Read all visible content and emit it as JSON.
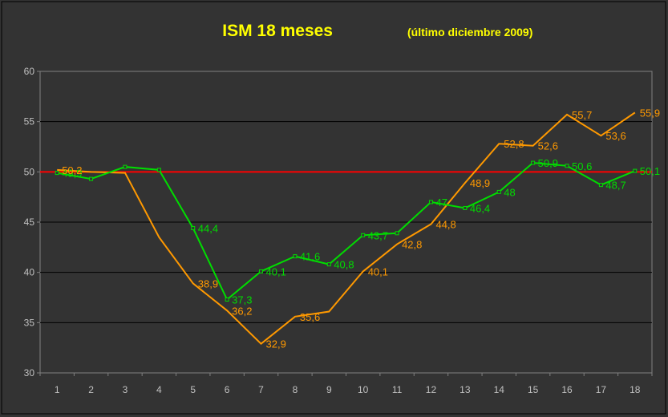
{
  "chart_data": {
    "type": "line",
    "title": "ISM 18 meses",
    "subtitle": "(último diciembre 2009)",
    "categories": [
      "1",
      "2",
      "3",
      "4",
      "5",
      "6",
      "7",
      "8",
      "9",
      "10",
      "11",
      "12",
      "13",
      "14",
      "15",
      "16",
      "17",
      "18"
    ],
    "y_ticks": [
      "30",
      "35",
      "40",
      "45",
      "50",
      "55",
      "60"
    ],
    "ylim": [
      30,
      60
    ],
    "grid": true,
    "reference_line": {
      "value": 50,
      "color": "#ff0000"
    },
    "series": [
      {
        "color": "#00dd00",
        "values": [
          49.9,
          49.3,
          50.5,
          50.2,
          44.4,
          37.3,
          40.1,
          41.6,
          40.8,
          43.7,
          43.9,
          47,
          46.4,
          48,
          50.9,
          50.6,
          48.7,
          50.1
        ],
        "labels": [
          "49,9",
          "",
          "",
          "",
          "44,4",
          "37,3",
          "40,1",
          "41,6",
          "40,8",
          "43,7",
          "",
          "47",
          "46,4",
          "48",
          "50,9",
          "50,6",
          "48,7",
          "50,1"
        ]
      },
      {
        "color": "#ff9900",
        "values": [
          50.2,
          50,
          49.9,
          43.5,
          38.9,
          36.2,
          32.9,
          35.6,
          36.1,
          40.1,
          42.8,
          44.8,
          48.9,
          52.8,
          52.6,
          55.7,
          53.6,
          55.9
        ],
        "labels": [
          "50,2",
          "",
          "",
          "",
          "38,9",
          "36,2",
          "32,9",
          "35,6",
          "",
          "40,1",
          "42,8",
          "44,8",
          "48,9",
          "52,8",
          "52,6",
          "55,7",
          "53,6",
          "55,9"
        ]
      }
    ]
  }
}
